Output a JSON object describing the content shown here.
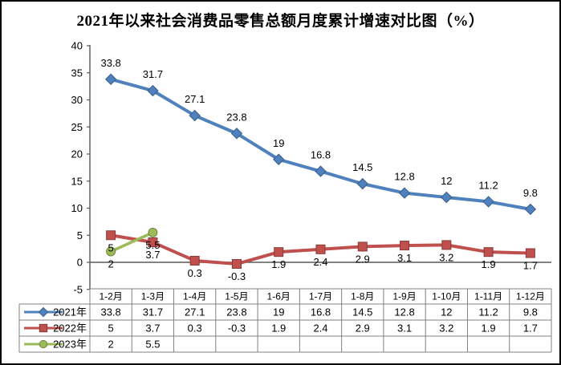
{
  "title": "2021年以来社会消费品零售总额月度累计增速对比图（%）",
  "colors": {
    "series_2021": "#4F81BD",
    "series_2022": "#C0504D",
    "series_2023": "#9BBB59",
    "axis": "#595959",
    "table_border": "#808080",
    "background": "#FFFFFF",
    "frame_border": "#000000",
    "text": "#000000"
  },
  "chart_data": {
    "type": "line",
    "title": "2021年以来社会消费品零售总额月度累计增速对比图（%）",
    "categories": [
      "1-2月",
      "1-3月",
      "1-4月",
      "1-5月",
      "1-6月",
      "1-7月",
      "1-8月",
      "1-9月",
      "1-10月",
      "1-11月",
      "1-12月"
    ],
    "series": [
      {
        "name": "2021年",
        "color": "#4F81BD",
        "marker": "diamond",
        "label_position": "above",
        "values": [
          33.8,
          31.7,
          27.1,
          23.8,
          19,
          16.8,
          14.5,
          12.8,
          12,
          11.2,
          9.8
        ]
      },
      {
        "name": "2022年",
        "color": "#C0504D",
        "marker": "square",
        "label_position": "below",
        "values": [
          5,
          3.7,
          0.3,
          -0.3,
          1.9,
          2.4,
          2.9,
          3.1,
          3.2,
          1.9,
          1.7
        ]
      },
      {
        "name": "2023年",
        "color": "#9BBB59",
        "marker": "circle",
        "label_position": "below",
        "values": [
          2,
          5.5
        ]
      }
    ],
    "y_axis": {
      "min": -5,
      "max": 40,
      "step": 5,
      "ticks": [
        "40",
        "35",
        "30",
        "25",
        "20",
        "15",
        "10",
        "5",
        "0",
        "-5"
      ]
    },
    "ylim": [
      -5,
      40
    ],
    "xlabel": "",
    "ylabel": "",
    "grid": false,
    "data_table_shown": true,
    "legend_position": "table-left"
  }
}
